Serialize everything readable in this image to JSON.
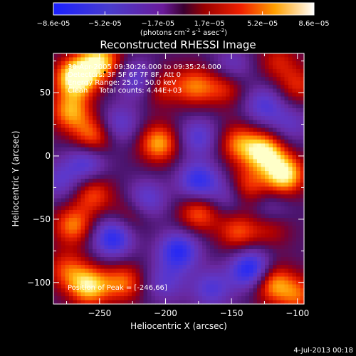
{
  "chart_data": {
    "type": "heatmap",
    "title": "Reconstructed RHESSI Image",
    "xlabel": "Heliocentric X (arcsec)",
    "ylabel": "Heliocentric Y (arcsec)",
    "xlim": [
      -285,
      -95
    ],
    "ylim": [
      -117,
      81
    ],
    "x_ticks": [
      -250,
      -200,
      -150,
      -100
    ],
    "y_ticks": [
      -100,
      -50,
      0,
      50
    ],
    "colorbar": {
      "ticks": [
        "-8.6e-05",
        "-5.2e-05",
        "-1.7e-05",
        "1.7e-05",
        "5.2e-05",
        "8.6e-05"
      ],
      "label": "(photons cm",
      "label_exp1": "-2",
      "label_mid": " s",
      "label_exp2": "-1",
      "label_end": " asec",
      "label_exp3": "-2",
      "label_close": ")",
      "range": [
        -8.6e-05,
        8.6e-05
      ]
    },
    "annotations": [
      "30-Apr-2005 09:30:26.000 to 09:35:24.000",
      "Detectors: 3F 5F 6F 7F 8F, Att 0",
      "Energy Range: 25.0 - 50.0 keV",
      "Clean     Total counts: 4.44E+03"
    ],
    "peak_label": "Position of Peak = [-246,66]",
    "peak": [
      -246,
      66
    ],
    "blobs": [
      {
        "x": -268,
        "y": 62,
        "v": 1.0
      },
      {
        "x": -250,
        "y": 75,
        "v": 0.8
      },
      {
        "x": -272,
        "y": 35,
        "v": 0.65
      },
      {
        "x": -125,
        "y": 3,
        "v": 0.85
      },
      {
        "x": -110,
        "y": -15,
        "v": 0.9
      },
      {
        "x": -140,
        "y": -25,
        "v": 0.6
      },
      {
        "x": -145,
        "y": 10,
        "v": 0.55
      },
      {
        "x": -205,
        "y": 10,
        "v": 0.7
      },
      {
        "x": -255,
        "y": 15,
        "v": 0.6
      },
      {
        "x": -178,
        "y": 55,
        "v": 0.55
      },
      {
        "x": -205,
        "y": 55,
        "v": 0.45
      },
      {
        "x": -155,
        "y": 55,
        "v": 0.45
      },
      {
        "x": -175,
        "y": -45,
        "v": 0.55
      },
      {
        "x": -145,
        "y": -60,
        "v": 0.5
      },
      {
        "x": -270,
        "y": -55,
        "v": 0.6
      },
      {
        "x": -255,
        "y": -30,
        "v": 0.5
      },
      {
        "x": -225,
        "y": -45,
        "v": 0.35
      },
      {
        "x": -120,
        "y": -55,
        "v": 0.45
      },
      {
        "x": -258,
        "y": -103,
        "v": 0.8
      },
      {
        "x": -232,
        "y": -100,
        "v": 0.55
      },
      {
        "x": -120,
        "y": -100,
        "v": 0.7
      },
      {
        "x": -100,
        "y": -110,
        "v": 0.5
      },
      {
        "x": -275,
        "y": -90,
        "v": 0.45
      },
      {
        "x": -100,
        "y": 55,
        "v": 0.4
      },
      {
        "x": -115,
        "y": 75,
        "v": 0.35
      },
      {
        "x": -260,
        "y": -5,
        "v": -0.55
      },
      {
        "x": -235,
        "y": 25,
        "v": -0.45
      },
      {
        "x": -240,
        "y": -65,
        "v": -0.75
      },
      {
        "x": -190,
        "y": -75,
        "v": -0.75
      },
      {
        "x": -175,
        "y": -20,
        "v": -0.7
      },
      {
        "x": -175,
        "y": 15,
        "v": -0.5
      },
      {
        "x": -215,
        "y": -35,
        "v": -0.55
      },
      {
        "x": -150,
        "y": -30,
        "v": -0.45
      },
      {
        "x": -135,
        "y": -90,
        "v": -0.9
      },
      {
        "x": -165,
        "y": -105,
        "v": -0.5
      },
      {
        "x": -120,
        "y": -45,
        "v": -0.4
      },
      {
        "x": -125,
        "y": 40,
        "v": -0.5
      },
      {
        "x": -150,
        "y": 70,
        "v": -0.4
      },
      {
        "x": -220,
        "y": 60,
        "v": -0.55
      },
      {
        "x": -200,
        "y": -100,
        "v": -0.4
      },
      {
        "x": -105,
        "y": 25,
        "v": -0.35
      },
      {
        "x": -280,
        "y": -20,
        "v": -0.4
      }
    ]
  },
  "footer": {
    "date": "4-Jul-2013 00:18"
  }
}
